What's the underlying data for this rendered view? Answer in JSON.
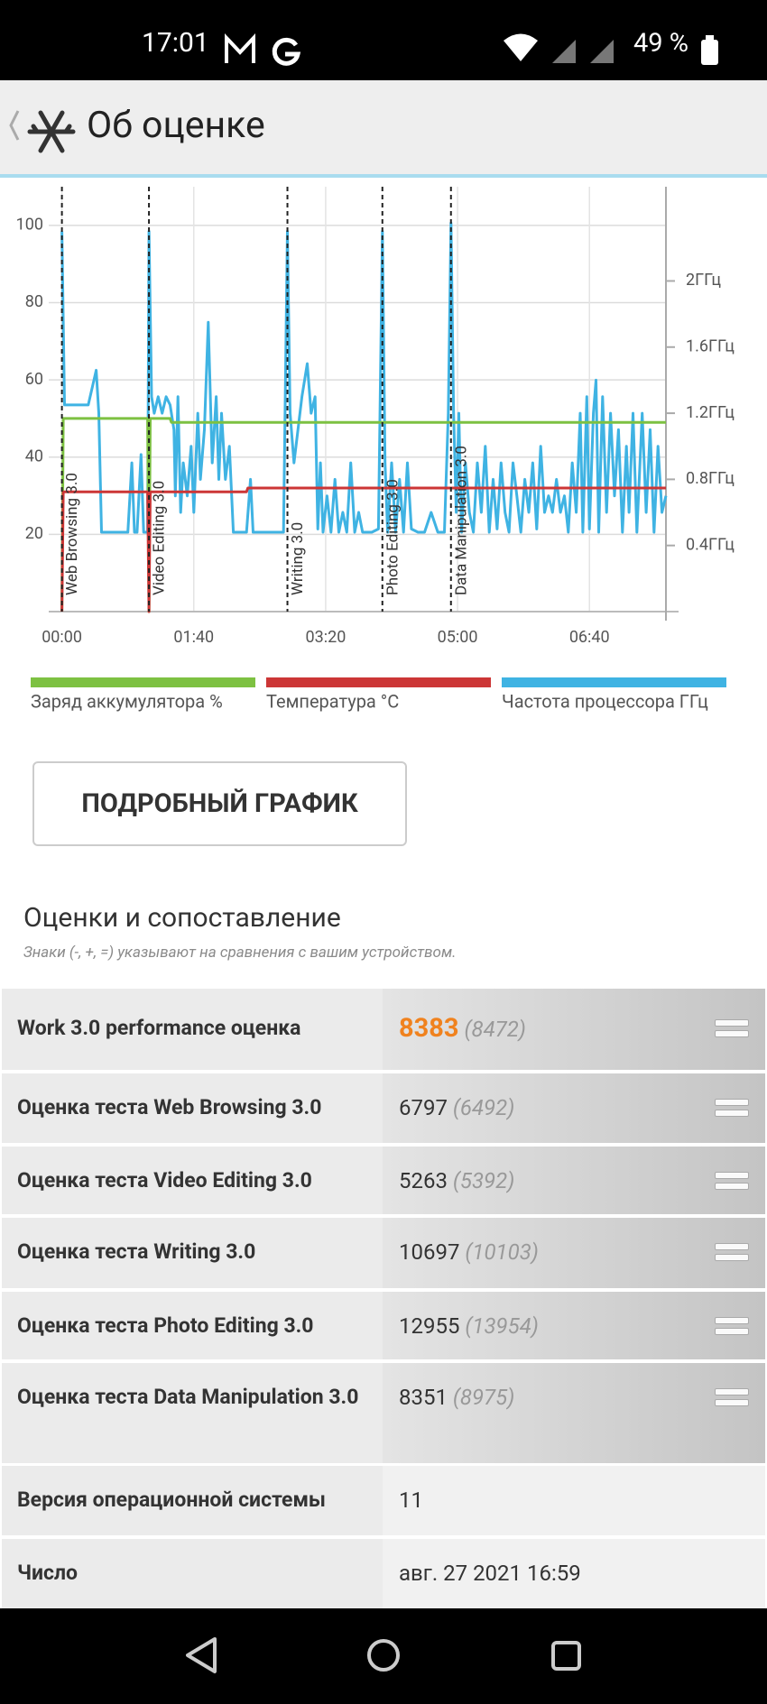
{
  "status_bar": {
    "time": "17:01",
    "battery": "49 %"
  },
  "header": {
    "title": "Об оценке"
  },
  "chart_data": {
    "type": "line",
    "xlim": [
      -10,
      458
    ],
    "xticks": [
      {
        "value": 0,
        "label": "00:00"
      },
      {
        "value": 100,
        "label": "01:40"
      },
      {
        "value": 200,
        "label": "03:20"
      },
      {
        "value": 300,
        "label": "05:00"
      },
      {
        "value": 400,
        "label": "06:40"
      }
    ],
    "ylim": [
      0,
      110
    ],
    "yticks": [
      20,
      40,
      60,
      80,
      100
    ],
    "y2lim": [
      0,
      2.57
    ],
    "y2ticks": [
      {
        "value": 0.4,
        "label": "0.4ГГц"
      },
      {
        "value": 0.8,
        "label": "0.8ГГц"
      },
      {
        "value": 1.2,
        "label": "1.2ГГц"
      },
      {
        "value": 1.6,
        "label": "1.6ГГц"
      },
      {
        "value": 2,
        "label": "2ГГц"
      }
    ],
    "grid": true,
    "markers": [
      {
        "x": 0,
        "label": "Web Browsing 3.0"
      },
      {
        "x": 66,
        "label": "Video Editing 3.0"
      },
      {
        "x": 171,
        "label": "Writing 3.0"
      },
      {
        "x": 243,
        "label": "Photo Editing 3.0"
      },
      {
        "x": 295,
        "label": "Data Manipulation 3.0"
      }
    ],
    "series": [
      {
        "name": "Заряд аккумулятора %",
        "color": "#7dc142",
        "x": [
          0,
          1,
          65,
          66,
          67,
          82,
          83,
          458
        ],
        "values": [
          0,
          50,
          50,
          0,
          50,
          50,
          49,
          49
        ]
      },
      {
        "name": "Температура °C",
        "color": "#cc3636",
        "x": [
          0,
          1,
          65,
          66,
          67,
          140,
          141,
          458
        ],
        "values": [
          0,
          31,
          31,
          0,
          31,
          31,
          32,
          32
        ]
      },
      {
        "name": "Частота процессора ГГц",
        "color": "#3fb3e3",
        "axis": "y2",
        "x": [
          0,
          2,
          10,
          14,
          20,
          26,
          28,
          30,
          40,
          50,
          53,
          55,
          57,
          60,
          62,
          65,
          66,
          68,
          70,
          73,
          76,
          79,
          82,
          85,
          86,
          88,
          90,
          92,
          95,
          98,
          100,
          103,
          105,
          108,
          111,
          114,
          117,
          119,
          121,
          124,
          127,
          130,
          135,
          140,
          143,
          145,
          148,
          155,
          160,
          168,
          171,
          173,
          176,
          179,
          182,
          186,
          189,
          192,
          194,
          196,
          198,
          201,
          204,
          207,
          210,
          213,
          216,
          219,
          222,
          225,
          228,
          235,
          240,
          243,
          245,
          247,
          250,
          253,
          256,
          259,
          262,
          265,
          270,
          275,
          280,
          285,
          290,
          293,
          295,
          297,
          299,
          301,
          303,
          306,
          309,
          312,
          315,
          318,
          321,
          324,
          327,
          330,
          333,
          336,
          339,
          342,
          345,
          348,
          351,
          354,
          357,
          360,
          363,
          366,
          369,
          372,
          375,
          378,
          381,
          384,
          387,
          390,
          393,
          395,
          398,
          400,
          403,
          405,
          407,
          410,
          413,
          416,
          419,
          422,
          425,
          428,
          430,
          433,
          436,
          440,
          443,
          446,
          449,
          452,
          455,
          458
        ],
        "values": [
          2.3,
          1.25,
          1.25,
          1.25,
          1.25,
          1.46,
          1.2,
          0.48,
          0.48,
          0.48,
          0.9,
          0.48,
          0.48,
          0.95,
          0.48,
          0.48,
          2.3,
          1.3,
          1.2,
          1.3,
          1.2,
          1.3,
          1.25,
          1.1,
          0.7,
          1.3,
          0.6,
          0.9,
          0.7,
          1.0,
          0.6,
          1.2,
          0.8,
          1.1,
          1.75,
          0.9,
          1.3,
          0.8,
          1.2,
          0.8,
          1.0,
          0.48,
          0.48,
          0.48,
          0.8,
          0.48,
          0.48,
          0.48,
          0.48,
          0.48,
          2.3,
          1.2,
          0.9,
          1.1,
          1.3,
          1.5,
          1.2,
          1.3,
          0.5,
          0.9,
          0.48,
          0.7,
          0.48,
          0.8,
          0.48,
          0.6,
          0.48,
          0.9,
          0.48,
          0.6,
          0.48,
          0.48,
          0.5,
          2.3,
          0.9,
          0.48,
          0.9,
          0.48,
          0.8,
          0.48,
          0.9,
          0.5,
          0.48,
          0.48,
          0.6,
          0.48,
          0.48,
          1.2,
          2.35,
          1.2,
          0.6,
          1.2,
          0.48,
          0.9,
          0.6,
          0.48,
          0.9,
          0.6,
          1.0,
          0.48,
          0.8,
          0.5,
          0.9,
          0.6,
          0.48,
          0.9,
          0.7,
          0.48,
          0.8,
          0.6,
          0.9,
          0.5,
          1.0,
          0.6,
          0.7,
          0.6,
          0.8,
          0.6,
          0.7,
          0.48,
          0.9,
          0.6,
          1.2,
          0.48,
          1.3,
          0.5,
          1.2,
          1.4,
          0.48,
          1.3,
          0.6,
          1.2,
          0.7,
          1.1,
          0.48,
          1.0,
          0.6,
          1.2,
          0.48,
          1.2,
          0.6,
          1.1,
          0.48,
          1.0,
          0.6,
          0.7
        ]
      }
    ]
  },
  "button": {
    "label": "ПОДРОБНЫЙ ГРАФИК"
  },
  "section": {
    "title": "Оценки и сопоставление",
    "subtitle": "Знаки (-, +, =) указывают на сравнения с вашим устройством."
  },
  "table": {
    "rows": [
      {
        "label": "Work 3.0 performance оценка",
        "score": 8383,
        "compare": "(8472)"
      },
      {
        "label": "Оценка теста Web Browsing 3.0",
        "score": 6797,
        "compare": "(6492)"
      },
      {
        "label": "Оценка теста Video Editing 3.0",
        "score": 5263,
        "compare": "(5392)"
      },
      {
        "label": "Оценка теста Writing 3.0",
        "score": 10697,
        "compare": "(10103)"
      },
      {
        "label": "Оценка теста Photo Editing 3.0",
        "score": 12955,
        "compare": "(13954)"
      },
      {
        "label": "Оценка теста Data Manipulation 3.0",
        "score": 8351,
        "compare": "(8975)"
      },
      {
        "label": "Версия операционной системы",
        "value": "11"
      },
      {
        "label": "Число",
        "value": "авг. 27 2021 16:59"
      }
    ]
  }
}
